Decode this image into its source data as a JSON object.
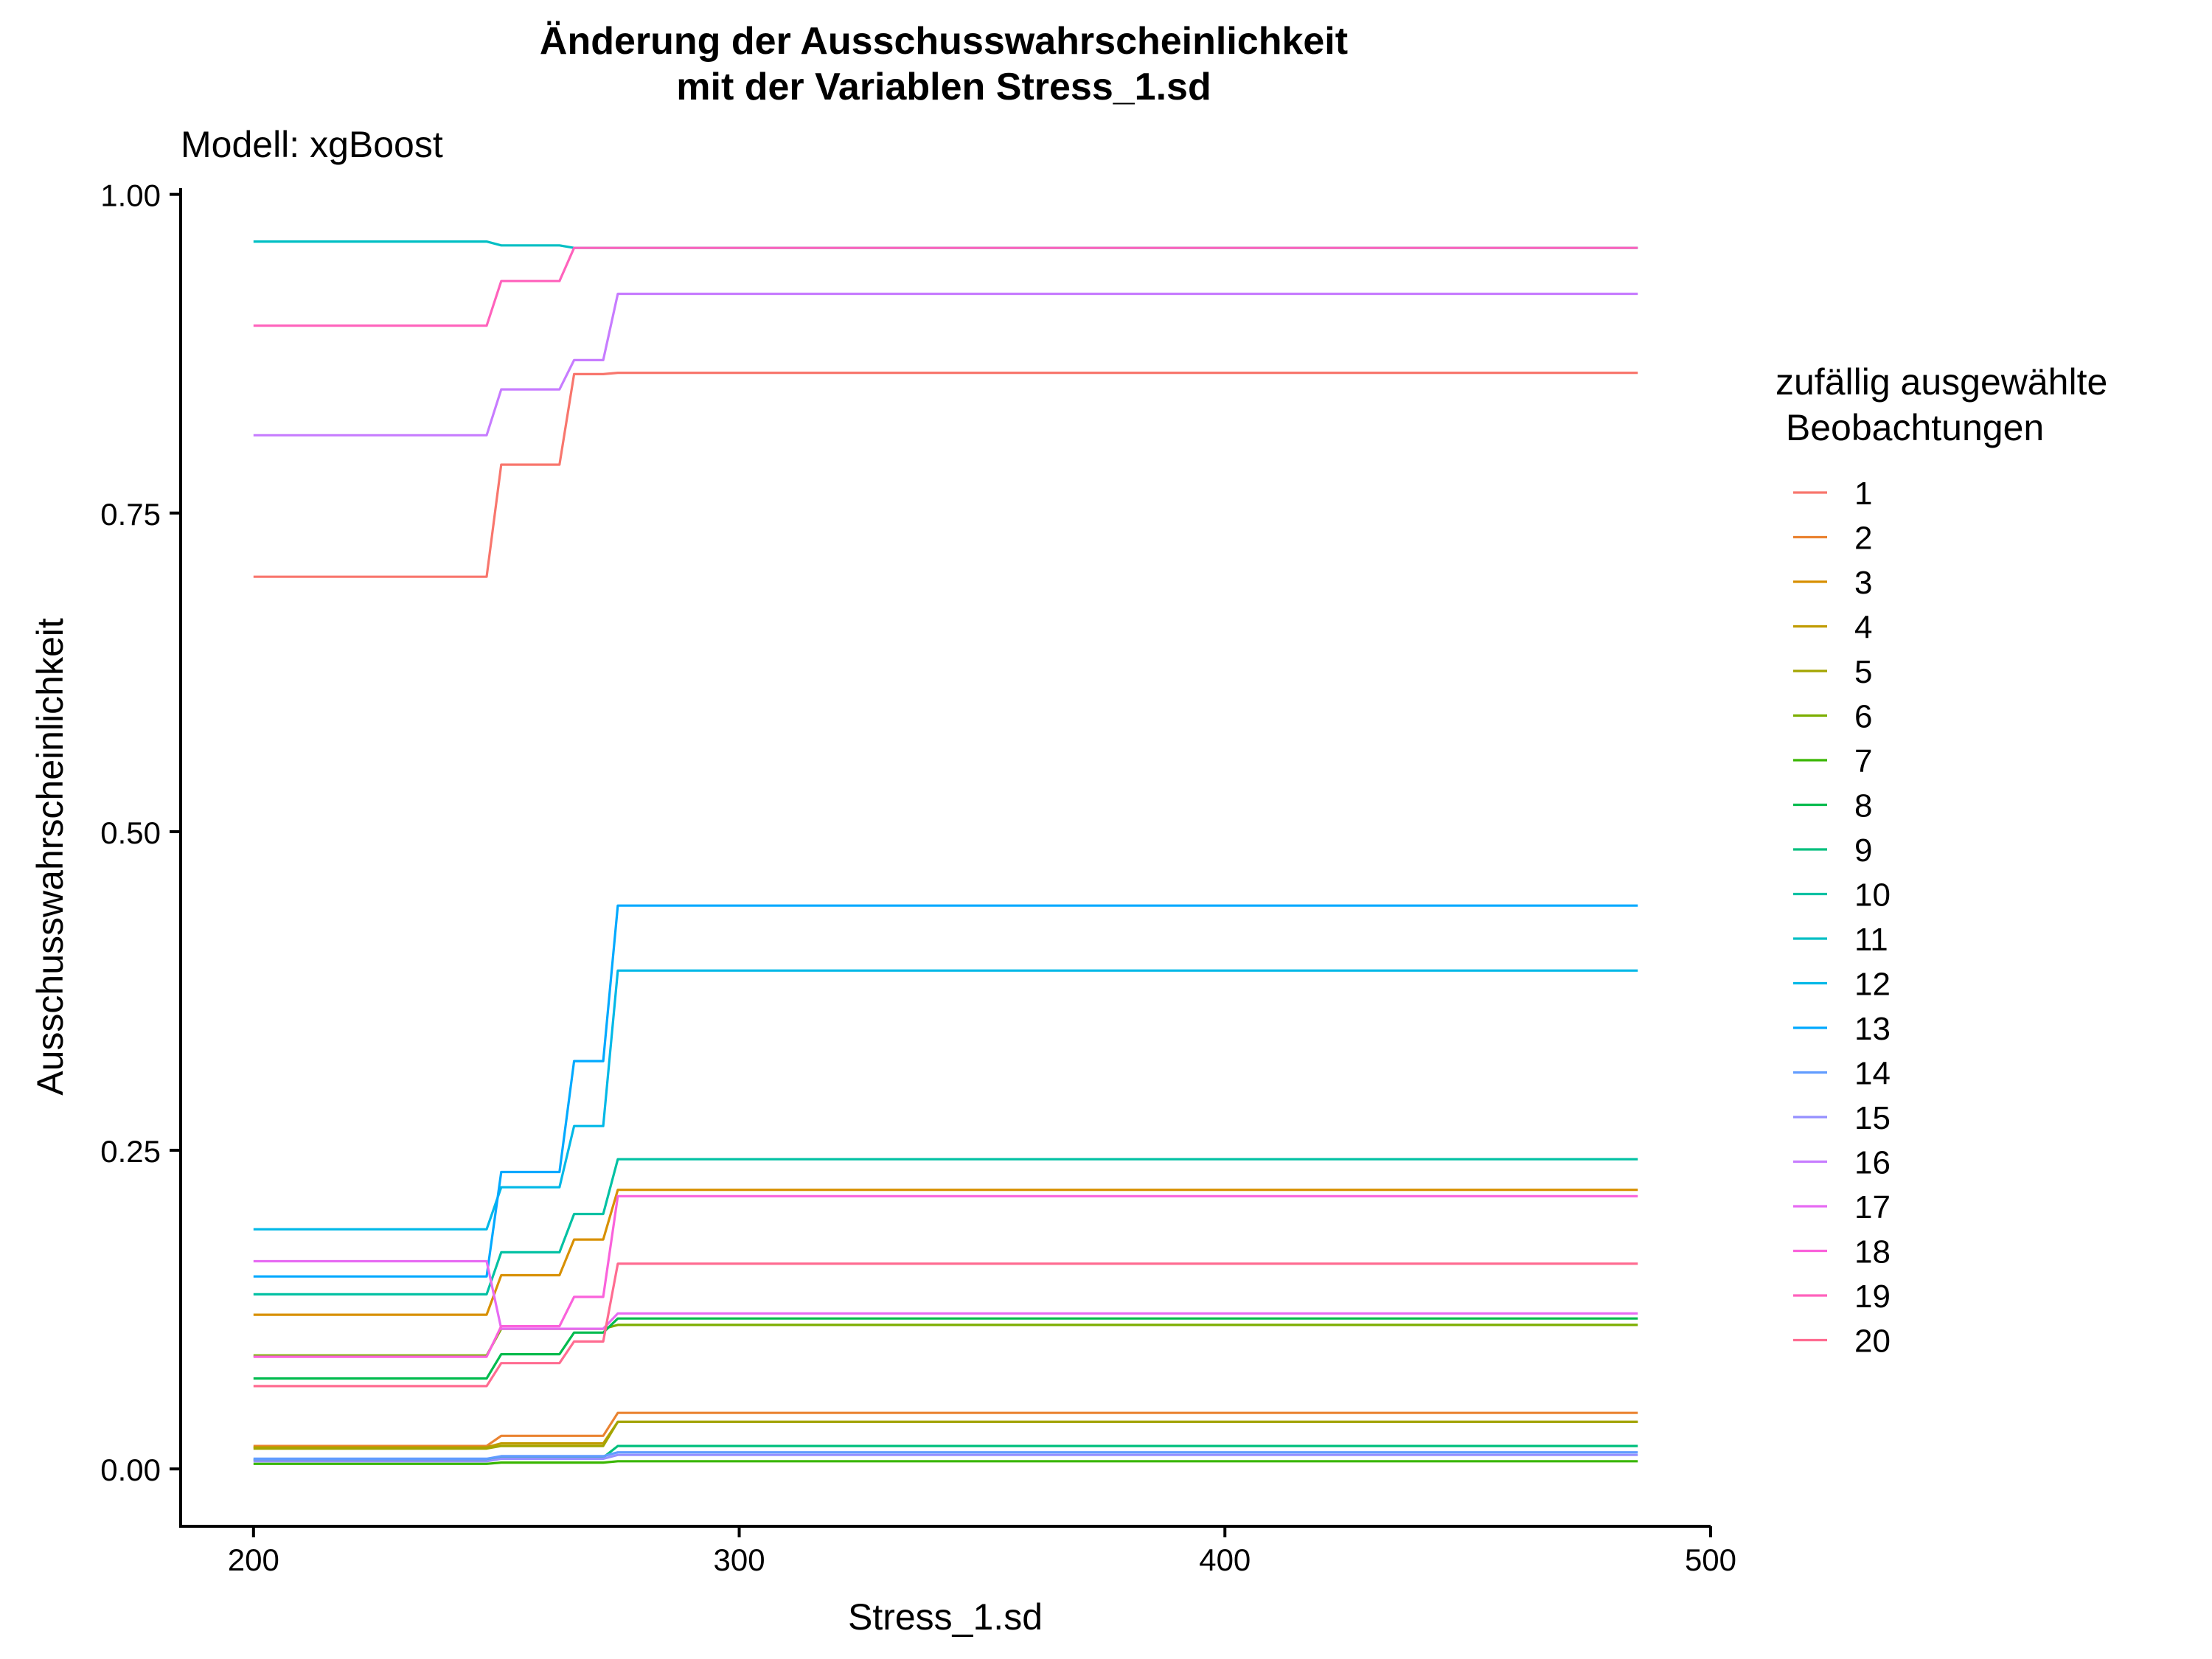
{
  "chart_data": {
    "type": "line",
    "title_line1": "Änderung der Ausschusswahrscheinlichkeit",
    "title_line2": "mit der Variablen Stress_1.sd",
    "subtitle": "Modell: xgBoost",
    "xlabel": "Stress_1.sd",
    "ylabel": "Ausschusswahrscheinlichkeit",
    "xlim": [
      185,
      500
    ],
    "ylim": [
      -0.045,
      1.005
    ],
    "x_ticks": [
      200,
      300,
      400,
      500
    ],
    "x_tick_labels": [
      "200",
      "300",
      "400",
      "500"
    ],
    "y_ticks": [
      0.0,
      0.25,
      0.5,
      0.75,
      1.0
    ],
    "y_tick_labels": [
      "0.00",
      "0.25",
      "0.50",
      "0.75",
      "1.00"
    ],
    "grid": false,
    "legend": {
      "title_line1": "zufällig ausgewählte",
      "title_line2": " Beobachtungen",
      "placement": "right"
    },
    "x_breaks": [
      200,
      248,
      251,
      263,
      266,
      272,
      275,
      485
    ],
    "series": [
      {
        "name": "1",
        "color": "#F8766D",
        "values": [
          0.7,
          0.7,
          0.788,
          0.788,
          0.859,
          0.859,
          0.86,
          0.86
        ]
      },
      {
        "name": "2",
        "color": "#EA8331",
        "values": [
          0.018,
          0.018,
          0.026,
          0.026,
          0.026,
          0.026,
          0.044,
          0.044
        ]
      },
      {
        "name": "3",
        "color": "#D89000",
        "values": [
          0.121,
          0.121,
          0.152,
          0.152,
          0.18,
          0.18,
          0.219,
          0.219
        ]
      },
      {
        "name": "4",
        "color": "#C09B00",
        "values": [
          0.017,
          0.017,
          0.02,
          0.02,
          0.02,
          0.02,
          0.037,
          0.037
        ]
      },
      {
        "name": "5",
        "color": "#A3A500",
        "values": [
          0.016,
          0.016,
          0.018,
          0.018,
          0.018,
          0.018,
          0.037,
          0.037
        ]
      },
      {
        "name": "6",
        "color": "#7CAE00",
        "values": [
          0.089,
          0.089,
          0.11,
          0.11,
          0.11,
          0.11,
          0.113,
          0.113
        ]
      },
      {
        "name": "7",
        "color": "#39B600",
        "values": [
          0.004,
          0.004,
          0.005,
          0.005,
          0.005,
          0.005,
          0.006,
          0.006
        ]
      },
      {
        "name": "8",
        "color": "#00BB4E",
        "values": [
          0.071,
          0.071,
          0.09,
          0.09,
          0.107,
          0.107,
          0.118,
          0.118
        ]
      },
      {
        "name": "9",
        "color": "#00BF7D",
        "values": [
          0.007,
          0.007,
          0.009,
          0.009,
          0.009,
          0.009,
          0.018,
          0.018
        ]
      },
      {
        "name": "10",
        "color": "#00C1A3",
        "values": [
          0.137,
          0.137,
          0.17,
          0.17,
          0.2,
          0.2,
          0.243,
          0.243
        ]
      },
      {
        "name": "11",
        "color": "#00BFC4",
        "values": [
          0.963,
          0.963,
          0.96,
          0.96,
          0.958,
          0.958,
          0.958,
          0.958
        ]
      },
      {
        "name": "12",
        "color": "#00B8E7",
        "values": [
          0.188,
          0.188,
          0.221,
          0.221,
          0.269,
          0.269,
          0.391,
          0.391
        ]
      },
      {
        "name": "13",
        "color": "#00A9FF",
        "values": [
          0.151,
          0.151,
          0.233,
          0.233,
          0.32,
          0.32,
          0.442,
          0.442
        ]
      },
      {
        "name": "14",
        "color": "#619CFF",
        "values": [
          0.008,
          0.008,
          0.01,
          0.01,
          0.01,
          0.01,
          0.013,
          0.013
        ]
      },
      {
        "name": "15",
        "color": "#9590FF",
        "values": [
          0.006,
          0.006,
          0.008,
          0.008,
          0.008,
          0.008,
          0.011,
          0.011
        ]
      },
      {
        "name": "16",
        "color": "#C77CFF",
        "values": [
          0.811,
          0.811,
          0.847,
          0.847,
          0.87,
          0.87,
          0.922,
          0.922
        ]
      },
      {
        "name": "17",
        "color": "#E76BF3",
        "values": [
          0.163,
          0.163,
          0.11,
          0.11,
          0.11,
          0.11,
          0.122,
          0.122
        ]
      },
      {
        "name": "18",
        "color": "#FA62DB",
        "values": [
          0.088,
          0.088,
          0.112,
          0.112,
          0.135,
          0.135,
          0.214,
          0.214
        ]
      },
      {
        "name": "19",
        "color": "#FF62BC",
        "values": [
          0.897,
          0.897,
          0.932,
          0.932,
          0.958,
          0.958,
          0.958,
          0.958
        ]
      },
      {
        "name": "20",
        "color": "#FF6C91",
        "values": [
          0.065,
          0.065,
          0.083,
          0.083,
          0.1,
          0.1,
          0.161,
          0.161
        ]
      }
    ]
  }
}
